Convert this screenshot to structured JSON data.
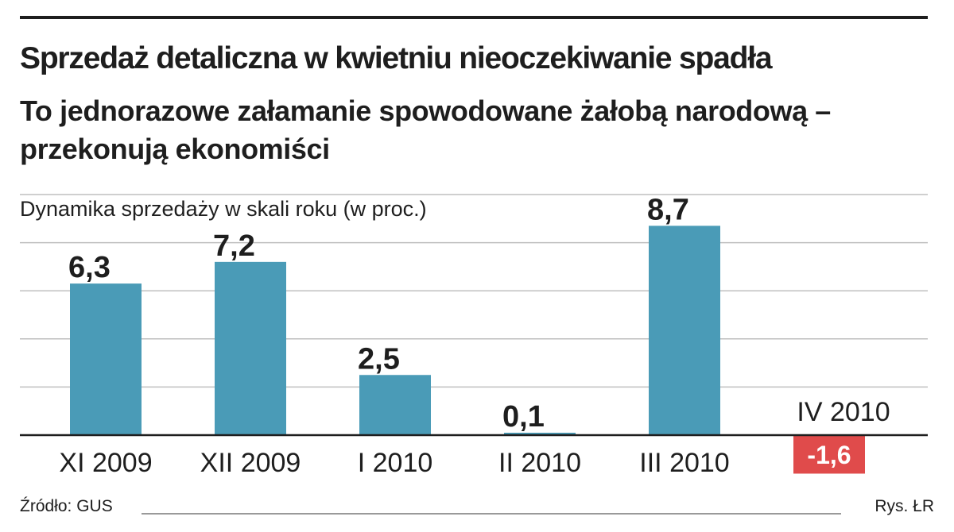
{
  "title": "Sprzedaż detaliczna w kwietniu nieoczekiwanie spadła",
  "subtitle": "To jednorazowe załamanie spowodowane żałobą narodową – przekonują ekonomiści",
  "chart_data": {
    "type": "bar",
    "ylabel": "Dynamika sprzedaży w skali roku (w proc.)",
    "categories": [
      "XI 2009",
      "XII 2009",
      "I 2010",
      "II 2010",
      "III 2010",
      "IV 2010"
    ],
    "values": [
      6.3,
      7.2,
      2.5,
      0.1,
      8.7,
      -1.6
    ],
    "data_labels": [
      "6,3",
      "7,2",
      "2,5",
      "0,1",
      "8,7",
      "-1,6"
    ],
    "ylim": [
      -1.6,
      10
    ],
    "grid": true,
    "colors": {
      "positive": "#4a9bb7",
      "negative": "#e04b4b",
      "grid": "#bfbfbf",
      "axis": "#1e1e1e"
    }
  },
  "footer": {
    "source": "Źródło: GUS",
    "credit": "Rys. ŁR"
  }
}
